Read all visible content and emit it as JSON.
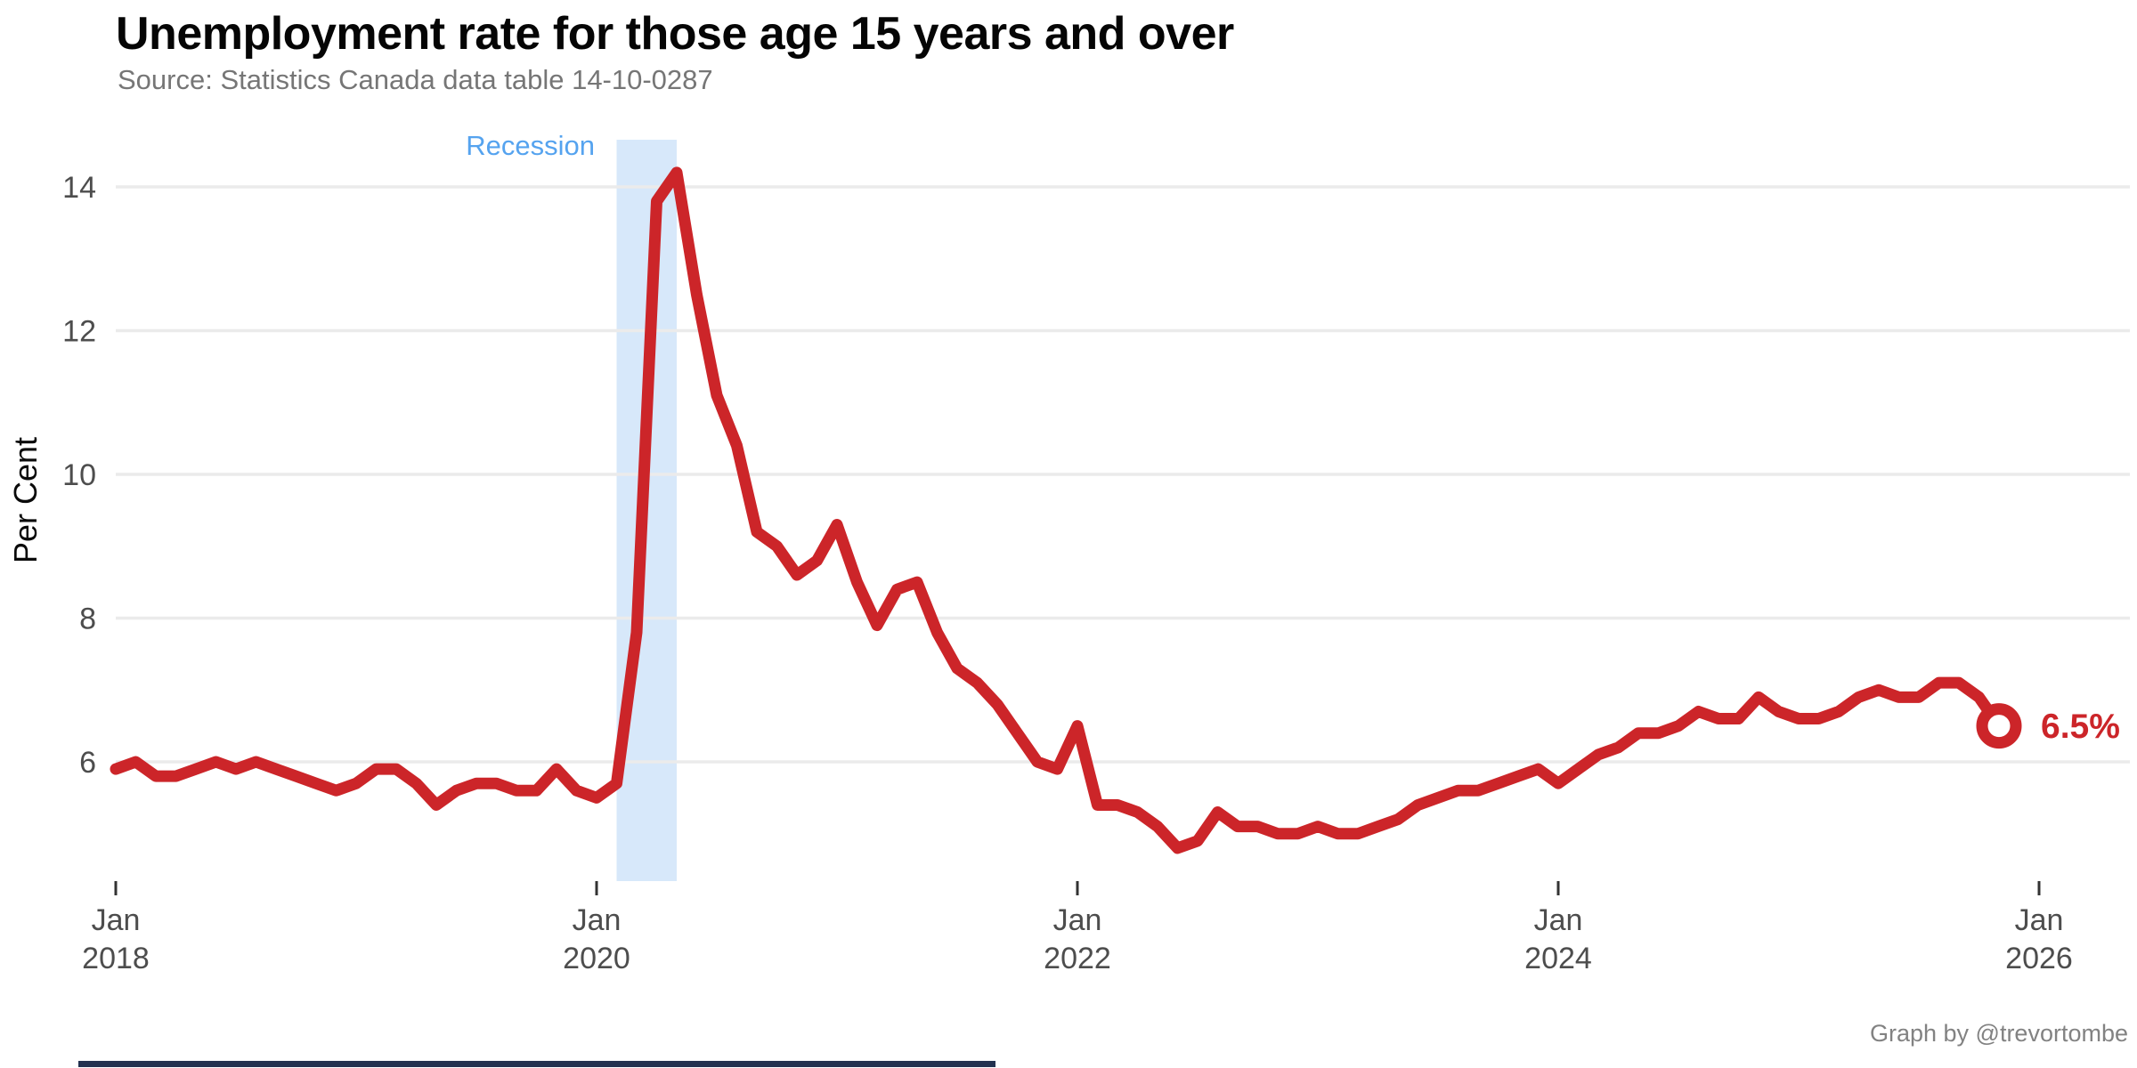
{
  "header": {
    "title": "Unemployment rate for those age 15 years and over",
    "subtitle": "Source: Statistics Canada data table 14-10-0287"
  },
  "plot": {
    "y_axis_title": "Per Cent",
    "recession_label": "Recession",
    "endpoint_label": "6.5%"
  },
  "footer": {
    "credit": "Graph by @trevortombe"
  },
  "colors": {
    "line": "#cc2529",
    "band": "#d7e8fa",
    "recession_text": "#55a3ef",
    "grid": "#ebebeb",
    "tick_text": "#4d4d4d",
    "tick_mark": "#333333",
    "subtitle_text": "#767676",
    "credit_text": "#828282",
    "endpoint_text": "#cc2529",
    "bottom_bar": "#233250"
  },
  "chart_data": {
    "type": "line",
    "title": "Unemployment rate for those age 15 years and over",
    "subtitle": "Source: Statistics Canada data table 14-10-0287",
    "xlabel": "",
    "ylabel": "Per Cent",
    "x_start": "2018-01",
    "x_interval": "month",
    "values": [
      5.9,
      6.0,
      5.8,
      5.8,
      5.9,
      6.0,
      5.9,
      6.0,
      5.9,
      5.8,
      5.7,
      5.6,
      5.7,
      5.9,
      5.9,
      5.7,
      5.4,
      5.6,
      5.7,
      5.7,
      5.6,
      5.6,
      5.9,
      5.6,
      5.5,
      5.7,
      7.8,
      13.8,
      14.2,
      12.5,
      11.1,
      10.4,
      9.2,
      9.0,
      8.6,
      8.8,
      9.3,
      8.5,
      7.9,
      8.4,
      8.5,
      7.8,
      7.3,
      7.1,
      6.8,
      6.4,
      6.0,
      5.9,
      6.5,
      5.4,
      5.4,
      5.3,
      5.1,
      4.8,
      4.9,
      5.3,
      5.1,
      5.1,
      5.0,
      5.0,
      5.1,
      5.0,
      5.0,
      5.1,
      5.2,
      5.4,
      5.5,
      5.6,
      5.6,
      5.7,
      5.8,
      5.9,
      5.7,
      5.9,
      6.1,
      6.2,
      6.4,
      6.4,
      6.5,
      6.7,
      6.6,
      6.6,
      6.9,
      6.7,
      6.6,
      6.6,
      6.7,
      6.9,
      7.0,
      6.9,
      6.9,
      7.1,
      7.1,
      6.9,
      6.5
    ],
    "y_ticks": [
      6,
      8,
      10,
      12,
      14
    ],
    "ylim": [
      4.35,
      14.65
    ],
    "xlim": [
      "2018-01",
      "2026-01"
    ],
    "x_ticks": [
      {
        "month": "2018-01",
        "line1": "Jan",
        "line2": "2018"
      },
      {
        "month": "2020-01",
        "line1": "Jan",
        "line2": "2020"
      },
      {
        "month": "2022-01",
        "line1": "Jan",
        "line2": "2022"
      },
      {
        "month": "2024-01",
        "line1": "Jan",
        "line2": "2024"
      },
      {
        "month": "2026-01",
        "line1": "Jan",
        "line2": "2026"
      }
    ],
    "recession_band": {
      "start": "2020-02",
      "end": "2020-05",
      "label": "Recession"
    },
    "endpoint": {
      "month": "2025-11",
      "value": 6.5,
      "label": "6.5%"
    },
    "grid": "horizontal-only",
    "legend": "none"
  }
}
